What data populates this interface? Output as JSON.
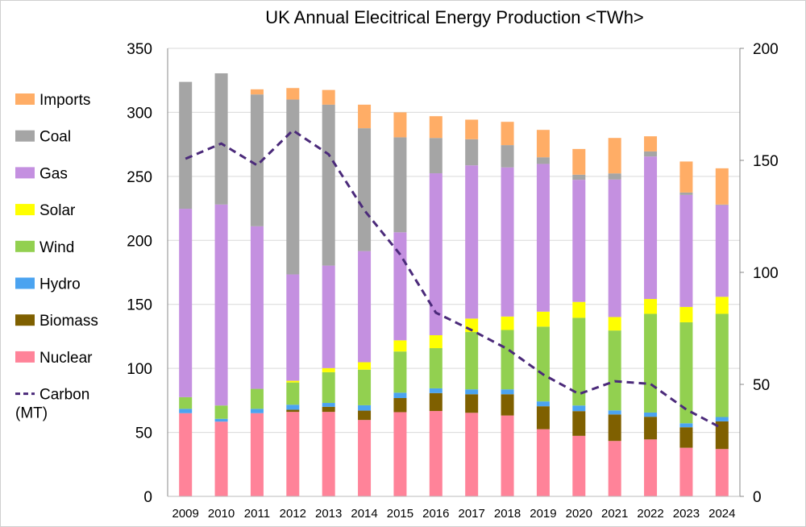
{
  "chart_data": {
    "type": "bar",
    "stacked": true,
    "title": "UK Annual Elecitrical Energy Production <TWh>",
    "xlabel": "",
    "ylabel": "",
    "ylim": [
      0,
      350
    ],
    "yticks": [
      "0",
      "50",
      "100",
      "150",
      "200",
      "250",
      "300",
      "350"
    ],
    "y2lim": [
      0,
      200
    ],
    "y2ticks": [
      "0",
      "50",
      "100",
      "150",
      "200"
    ],
    "grid": true,
    "legend_position": "left",
    "categories": [
      "2009",
      "2010",
      "2011",
      "2012",
      "2013",
      "2014",
      "2015",
      "2016",
      "2017",
      "2018",
      "2019",
      "2020",
      "2021",
      "2022",
      "2023",
      "2024"
    ],
    "series": [
      {
        "name": "Nuclear",
        "color": "#FF8399",
        "values": [
          65,
          58.4,
          65,
          66,
          66,
          59.7,
          65.8,
          66.7,
          65.3,
          63.2,
          52.5,
          47.3,
          43.3,
          44.5,
          38,
          37
        ]
      },
      {
        "name": "Biomass",
        "color": "#7F6000",
        "values": [
          0,
          0,
          0,
          1.7,
          4,
          7.3,
          11,
          14,
          14.5,
          16.6,
          17.9,
          19.3,
          20.7,
          17.7,
          16,
          21.6
        ]
      },
      {
        "name": "Hydro",
        "color": "#4BA3F0",
        "values": [
          3.4,
          2.2,
          3.4,
          3.9,
          3,
          4.2,
          4.2,
          3.7,
          3.8,
          3.8,
          3.8,
          4.4,
          3.2,
          3.3,
          3.1,
          3.4
        ]
      },
      {
        "name": "Wind",
        "color": "#92D050",
        "values": [
          9.1,
          10.4,
          15.6,
          17.4,
          24,
          27.8,
          32.2,
          31.4,
          44.8,
          46.4,
          58.4,
          68.5,
          62.4,
          77.1,
          78.9,
          80.6
        ]
      },
      {
        "name": "Solar",
        "color": "#FFFF00",
        "values": [
          0,
          0,
          0,
          1.3,
          3.2,
          5.8,
          8.7,
          10.1,
          10.5,
          10.5,
          11.7,
          12.4,
          10.5,
          11.6,
          12,
          13.3
        ]
      },
      {
        "name": "Gas",
        "color": "#C490E0",
        "values": [
          147.2,
          157,
          127,
          83.1,
          80.1,
          86.8,
          84.4,
          126.5,
          119.7,
          116.5,
          115.4,
          95.4,
          107.4,
          111.3,
          87.5,
          71.6
        ]
      },
      {
        "name": "Coal",
        "color": "#A5A5A5",
        "values": [
          99.1,
          102.5,
          103,
          136.6,
          125.7,
          96,
          74.2,
          27.6,
          20.4,
          17.4,
          5.2,
          4,
          4.8,
          4,
          1.9,
          0.5
        ]
      },
      {
        "name": "Imports",
        "color": "#FFAD66",
        "values": [
          0,
          0,
          4,
          9,
          11.5,
          18.4,
          19.5,
          17,
          15.3,
          18.2,
          21.4,
          20.1,
          27.7,
          11.8,
          24.2,
          28.3
        ]
      }
    ],
    "line_series": {
      "name": "Carbon\n(MT)",
      "label_lines": [
        "Carbon",
        "(MT)"
      ],
      "axis": "right",
      "color": "#4B2A7A",
      "style": "dashed",
      "values": [
        150.7,
        157.5,
        147.8,
        163.4,
        152.7,
        127.7,
        108,
        82,
        74.2,
        65.8,
        54.4,
        45.7,
        51.4,
        50.2,
        38.8,
        30.4
      ]
    },
    "legend_order": [
      "Imports",
      "Coal",
      "Gas",
      "Solar",
      "Wind",
      "Hydro",
      "Biomass",
      "Nuclear",
      "Carbon"
    ]
  }
}
